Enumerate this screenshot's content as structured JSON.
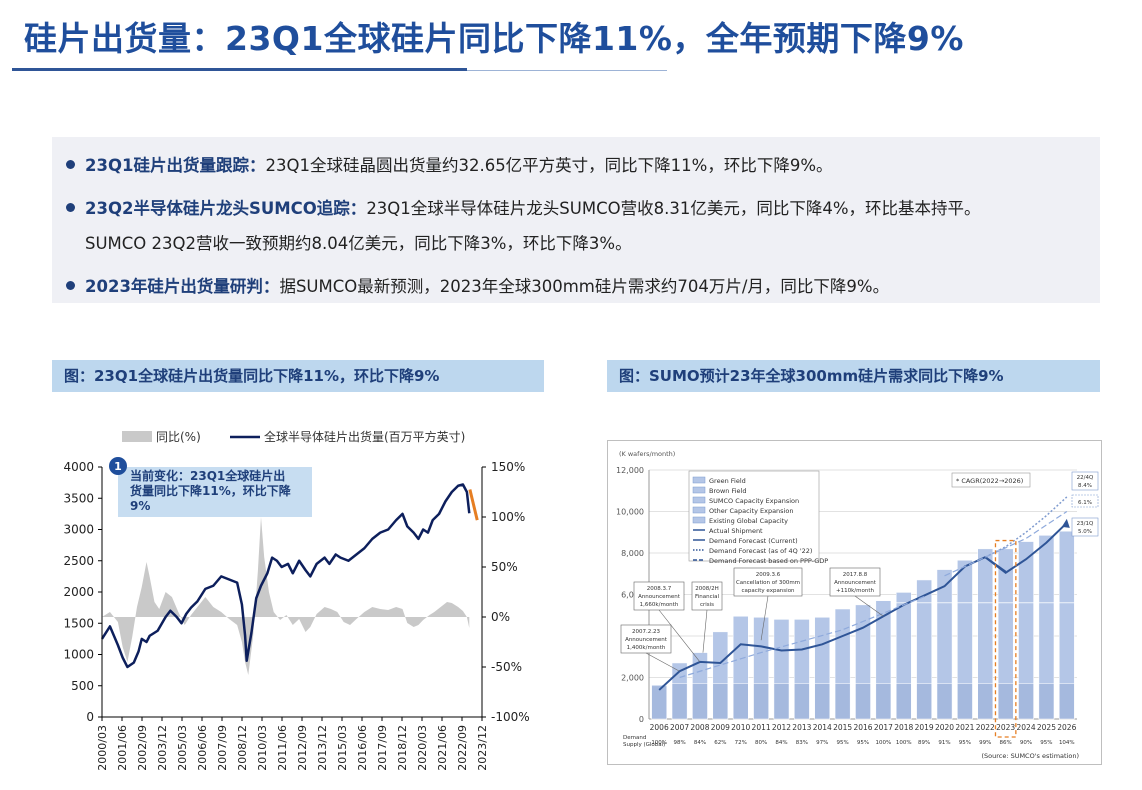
{
  "header": {
    "title": "硅片出货量：23Q1全球硅片同比下降11%，全年预期下降9%"
  },
  "summary": {
    "b1_head": "23Q1硅片出货量跟踪：",
    "b1_text": "23Q1全球硅晶圆出货量约32.65亿平方英寸，同比下降11%，环比下降9%。",
    "b2_head": "23Q2半导体硅片龙头SUMCO追踪：",
    "b2_text": "23Q1全球半导体硅片龙头SUMCO营收8.31亿美元，同比下降4%，环比基本持平。",
    "b2_cont": "SUMCO 23Q2营收一致预期约8.04亿美元，同比下降3%，环比下降3%。",
    "b3_head": "2023年硅片出货量研判：",
    "b3_text": "据SUMCO最新预测，2023年全球300mm硅片需求约704万片/月，同比下降9%。"
  },
  "captions": {
    "left": "图：23Q1全球硅片出货量同比下降11%，环比下降9%",
    "right": "图：SUMO预计23年全球300mm硅片需求同比下降9%"
  },
  "colors": {
    "title": "#1f4e9c",
    "caption_bg": "#bdd7ee",
    "shipment_line": "#0d1f5c",
    "yoy_area": "#c9c9c9",
    "highlight": "#e67e22",
    "bar_fill": "#b4c6e7",
    "bar_line": "#2f5597"
  },
  "chart_data": [
    {
      "type": "line",
      "legend": {
        "area": "同比(%)",
        "line": "全球半导体硅片出货量(百万平方英寸)"
      },
      "annotation": {
        "number": "1",
        "text": [
          "当前变化：23Q1全球硅片出",
          "货量同比下降11%，环比下降",
          "9%"
        ]
      },
      "y_left": {
        "min": 0,
        "max": 4000,
        "ticks": [
          "0",
          "500",
          "1000",
          "1500",
          "2000",
          "2500",
          "3000",
          "3500",
          "4000"
        ]
      },
      "y_right": {
        "min": -100,
        "max": 150,
        "ticks": [
          "-100%",
          "-50%",
          "0%",
          "50%",
          "100%",
          "150%"
        ]
      },
      "x_ticks": [
        "2000/03",
        "2001/06",
        "2002/09",
        "2003/12",
        "2005/03",
        "2006/06",
        "2007/09",
        "2008/12",
        "2010/03",
        "2011/06",
        "2012/09",
        "2013/12",
        "2015/03",
        "2016/06",
        "2017/09",
        "2018/12",
        "2020/03",
        "2021/06",
        "2022/09",
        "2023/12"
      ],
      "shipment": [
        [
          2000.0,
          1250
        ],
        [
          2000.5,
          1450
        ],
        [
          2001.0,
          1150
        ],
        [
          2001.3,
          950
        ],
        [
          2001.6,
          800
        ],
        [
          2002.0,
          870
        ],
        [
          2002.3,
          1050
        ],
        [
          2002.5,
          1250
        ],
        [
          2002.8,
          1200
        ],
        [
          2003.0,
          1300
        ],
        [
          2003.5,
          1380
        ],
        [
          2004.0,
          1600
        ],
        [
          2004.3,
          1700
        ],
        [
          2004.7,
          1600
        ],
        [
          2005.0,
          1500
        ],
        [
          2005.3,
          1650
        ],
        [
          2005.6,
          1750
        ],
        [
          2006.0,
          1850
        ],
        [
          2006.5,
          2050
        ],
        [
          2007.0,
          2100
        ],
        [
          2007.5,
          2250
        ],
        [
          2008.0,
          2200
        ],
        [
          2008.5,
          2150
        ],
        [
          2008.8,
          1800
        ],
        [
          2009.0,
          1300
        ],
        [
          2009.1,
          900
        ],
        [
          2009.4,
          1350
        ],
        [
          2009.7,
          1900
        ],
        [
          2010.0,
          2100
        ],
        [
          2010.4,
          2300
        ],
        [
          2010.7,
          2550
        ],
        [
          2011.0,
          2500
        ],
        [
          2011.3,
          2400
        ],
        [
          2011.7,
          2450
        ],
        [
          2012.0,
          2300
        ],
        [
          2012.4,
          2500
        ],
        [
          2012.8,
          2350
        ],
        [
          2013.1,
          2250
        ],
        [
          2013.5,
          2450
        ],
        [
          2014.0,
          2550
        ],
        [
          2014.3,
          2450
        ],
        [
          2014.7,
          2600
        ],
        [
          2015.0,
          2550
        ],
        [
          2015.5,
          2500
        ],
        [
          2016.0,
          2600
        ],
        [
          2016.5,
          2700
        ],
        [
          2017.0,
          2850
        ],
        [
          2017.5,
          2950
        ],
        [
          2018.0,
          3000
        ],
        [
          2018.5,
          3150
        ],
        [
          2018.9,
          3250
        ],
        [
          2019.2,
          3050
        ],
        [
          2019.6,
          2950
        ],
        [
          2019.9,
          2850
        ],
        [
          2020.2,
          3000
        ],
        [
          2020.5,
          2950
        ],
        [
          2020.8,
          3150
        ],
        [
          2021.2,
          3250
        ],
        [
          2021.6,
          3450
        ],
        [
          2022.0,
          3600
        ],
        [
          2022.4,
          3700
        ],
        [
          2022.7,
          3720
        ],
        [
          2022.95,
          3600
        ],
        [
          2023.1,
          3260
        ]
      ],
      "yoy": [
        [
          2000.0,
          0
        ],
        [
          2000.5,
          5
        ],
        [
          2001.0,
          -5
        ],
        [
          2001.3,
          -30
        ],
        [
          2001.6,
          -45
        ],
        [
          2001.9,
          -20
        ],
        [
          2002.2,
          10
        ],
        [
          2002.5,
          30
        ],
        [
          2002.8,
          55
        ],
        [
          2003.0,
          40
        ],
        [
          2003.3,
          15
        ],
        [
          2003.6,
          8
        ],
        [
          2004.0,
          25
        ],
        [
          2004.4,
          20
        ],
        [
          2004.8,
          5
        ],
        [
          2005.2,
          -8
        ],
        [
          2005.6,
          2
        ],
        [
          2006.0,
          10
        ],
        [
          2006.5,
          20
        ],
        [
          2007.0,
          10
        ],
        [
          2007.5,
          5
        ],
        [
          2008.0,
          -2
        ],
        [
          2008.5,
          -8
        ],
        [
          2008.8,
          -25
        ],
        [
          2009.0,
          -45
        ],
        [
          2009.2,
          -58
        ],
        [
          2009.5,
          -20
        ],
        [
          2009.8,
          45
        ],
        [
          2010.0,
          100
        ],
        [
          2010.2,
          60
        ],
        [
          2010.5,
          25
        ],
        [
          2010.8,
          5
        ],
        [
          2011.2,
          -3
        ],
        [
          2011.6,
          2
        ],
        [
          2012.0,
          -8
        ],
        [
          2012.4,
          -2
        ],
        [
          2012.8,
          -15
        ],
        [
          2013.1,
          -10
        ],
        [
          2013.5,
          3
        ],
        [
          2014.0,
          10
        ],
        [
          2014.4,
          8
        ],
        [
          2014.8,
          5
        ],
        [
          2015.2,
          -5
        ],
        [
          2015.6,
          -8
        ],
        [
          2016.0,
          -2
        ],
        [
          2016.5,
          5
        ],
        [
          2017.0,
          10
        ],
        [
          2017.5,
          8
        ],
        [
          2018.0,
          7
        ],
        [
          2018.5,
          10
        ],
        [
          2018.9,
          8
        ],
        [
          2019.2,
          -6
        ],
        [
          2019.6,
          -10
        ],
        [
          2019.9,
          -8
        ],
        [
          2020.2,
          -3
        ],
        [
          2020.6,
          2
        ],
        [
          2020.9,
          5
        ],
        [
          2021.3,
          10
        ],
        [
          2021.7,
          15
        ],
        [
          2022.0,
          14
        ],
        [
          2022.4,
          10
        ],
        [
          2022.7,
          6
        ],
        [
          2022.95,
          0
        ],
        [
          2023.1,
          -11
        ]
      ]
    },
    {
      "type": "bar",
      "unit_label": "(K wafers/month)",
      "y_ticks": [
        "0",
        "2,000",
        "4,000",
        "6,000",
        "8,000",
        "10,000",
        "12,000"
      ],
      "ylim": [
        0,
        12000
      ],
      "categories": [
        "2006",
        "2007",
        "2008",
        "2009",
        "2010",
        "2011",
        "2012",
        "2013",
        "2014",
        "2015",
        "2016",
        "2017",
        "2018",
        "2019",
        "2020",
        "2021",
        "2022",
        "2023",
        "2024",
        "2025",
        "2026"
      ],
      "capacity": [
        1600,
        1700,
        1700,
        1700,
        1700,
        1700,
        1700,
        1700,
        1700,
        1700,
        1700,
        1700,
        1700,
        1700,
        1700,
        1700,
        1700,
        1700,
        1700,
        1700,
        1700
      ],
      "bar_totals": [
        1650,
        2700,
        3200,
        4200,
        4950,
        4900,
        4800,
        4800,
        4900,
        5300,
        5500,
        5700,
        6100,
        6700,
        7200,
        7650,
        8200,
        8200,
        8550,
        8850,
        9050
      ],
      "bar_mid_line": [
        0,
        0,
        0,
        0,
        0,
        0,
        0,
        0,
        0,
        0,
        0,
        0,
        5600,
        5600,
        5600,
        5600,
        5600,
        5600,
        5600,
        5600,
        5600
      ],
      "actual_shipment": [
        1400,
        2300,
        2750,
        2700,
        3600,
        3500,
        3300,
        3350,
        3600,
        4000,
        4400,
        4950,
        5500,
        5950,
        6400,
        7350,
        7800,
        7100,
        0,
        0,
        0
      ],
      "demand_forecast_current": [
        0,
        0,
        0,
        0,
        0,
        0,
        0,
        0,
        0,
        0,
        0,
        0,
        0,
        0,
        0,
        0,
        7800,
        7050,
        7700,
        8500,
        9450
      ],
      "legend": [
        "Green Field",
        "Brown Field",
        "SUMCO Capacity Expansion",
        "Other Capacity Expansion",
        "Existing Global Capacity",
        "Actual Shipment",
        "Demand Forecast (Current)",
        "Demand Forecast (as of 4Q '22)",
        "Demand Forecast based on PPP-GDP"
      ],
      "cagr_label": "* CAGR(2022→2026)",
      "cagr_values": [
        {
          "head": "22/4Q",
          "val": "8.4%"
        },
        {
          "head": "",
          "val": "6.1%"
        },
        {
          "head": "23/1Q",
          "val": "5.0%"
        }
      ],
      "callouts": [
        "2007.2.23|Announcement|1,400k/month",
        "2008.3.7|Announcement|1,660k/month",
        "2008/2H|Financial|crisis",
        "2009.3.6|Cancellation of 300mm|capacity expansion",
        "2017.8.8|Announcement|+110k/month"
      ],
      "demand_row_label": [
        "Demand",
        "Supply (Global)"
      ],
      "demand_supply": [
        "100%",
        "98%",
        "84%",
        "62%",
        "72%",
        "80%",
        "84%",
        "83%",
        "97%",
        "95%",
        "95%",
        "100%",
        "100%",
        "89%",
        "91%",
        "95%",
        "99%",
        "86%",
        "90%",
        "95%",
        "104%"
      ],
      "source": "(Source: SUMCO's estimation)"
    }
  ]
}
